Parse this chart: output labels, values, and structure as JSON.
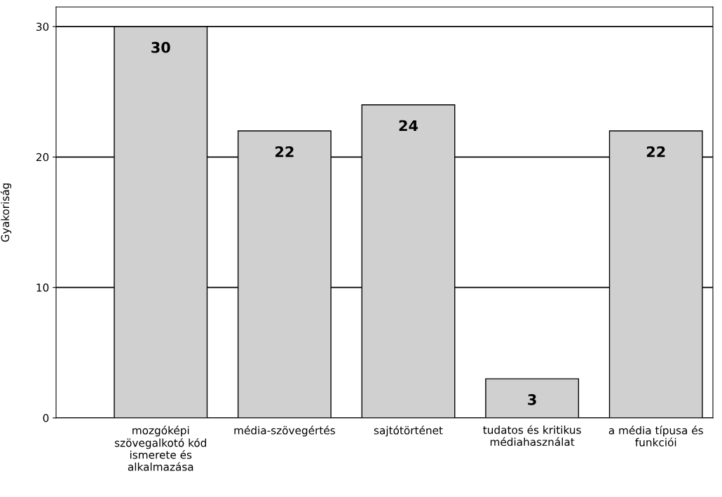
{
  "chart_data": {
    "type": "bar",
    "ylabel": "Gyakoriság",
    "categories": [
      "mozgóképi\nszövegalkotó kód\nismerete és\nalkalmazása",
      "média-szövegértés",
      "sajtótörténet",
      "tudatos és kritikus\nmédiahasználat",
      "a média típusa és\nfunkciói"
    ],
    "values": [
      30,
      22,
      24,
      3,
      22
    ],
    "color": "#d0d0d0",
    "ylim": [
      0,
      31.5
    ],
    "yticks": [
      0,
      10,
      20,
      30
    ],
    "grid": "y",
    "data_labels": true
  }
}
